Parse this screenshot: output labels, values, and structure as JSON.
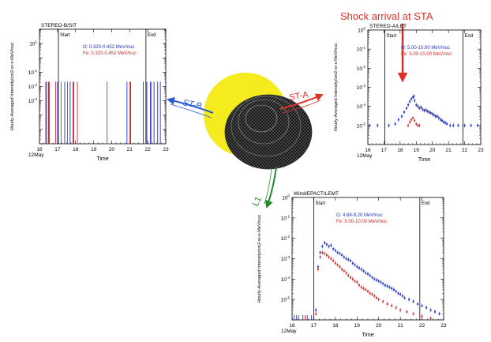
{
  "colors": {
    "oxygen": "#2233cc",
    "iron": "#d42a2a",
    "sun": "#f5eb1e",
    "st_b": "#2a5bd7",
    "st_a": "#e0302a",
    "l1": "#1f8a2a",
    "shock": "#e0302a"
  },
  "annotations": {
    "shock_label": "Shock arrival at STA",
    "st_b_label": "ST-B",
    "st_a_label": "ST-A",
    "l1_label": "L1"
  },
  "chart_data": [
    {
      "id": "stb",
      "type": "scatter",
      "title": "STEREO-B/SIT",
      "xlabel": "Time",
      "ylabel": "Hourly-Averaged Intensity/cm2-sr-s-MeV/nuc",
      "date_label": "12May",
      "xlim": [
        16,
        23
      ],
      "xticks": [
        "16",
        "17",
        "18",
        "19",
        "20",
        "21",
        "22",
        "23"
      ],
      "ylog": true,
      "ylim_exp": [
        -6,
        2
      ],
      "ytick_labels": [
        {
          "e": 1
        },
        {
          "e": -1
        },
        {
          "e": -2
        },
        {
          "e": -3
        }
      ],
      "legend": [
        {
          "text": "O: 0.320-0.452 MeV/nuc",
          "color": "#2233cc"
        },
        {
          "text": "Fe: 0.320-0.452 MeV/nuc",
          "color": "#d42a2a"
        }
      ],
      "markers": [
        {
          "label": "Start",
          "x": 17.05
        },
        {
          "label": "End",
          "x": 21.9
        }
      ],
      "series": [
        {
          "color": "#2233cc",
          "x": [
            16.35,
            16.5,
            17.0,
            17.4,
            17.7,
            17.9,
            20.85,
            21.05,
            21.75,
            21.95,
            22.15,
            22.35,
            22.55,
            22.7
          ],
          "y": [
            0.01,
            0.01,
            0.01,
            0.01,
            0.01,
            0.01,
            0.01,
            0.01,
            0.01,
            0.01,
            0.01,
            0.01,
            0.01,
            0.01
          ]
        },
        {
          "color": "#d42a2a",
          "x": [
            16.4,
            16.55,
            16.9,
            17.2,
            17.55,
            17.85,
            18.1,
            19.75,
            21.0,
            22.2
          ],
          "y": [
            0.01,
            0.01,
            0.01,
            0.01,
            0.01,
            0.01,
            0.01,
            0.01,
            0.01,
            0.01
          ]
        }
      ]
    },
    {
      "id": "sta",
      "type": "scatter",
      "title": "STEREO-A/LET",
      "xlabel": "Time",
      "ylabel": "Hourly-Averaged Intensity/cm2-sr-s-MeV/nuc",
      "date_label": "12May",
      "xlim": [
        16,
        23
      ],
      "xticks": [
        "16",
        "17",
        "18",
        "19",
        "20",
        "21",
        "22",
        "23"
      ],
      "ylog": true,
      "ylim_exp": [
        -6,
        0
      ],
      "ytick_labels": [
        {
          "e": 0
        },
        {
          "e": -1
        },
        {
          "e": -2
        },
        {
          "e": -3
        },
        {
          "e": -4
        },
        {
          "e": -5
        }
      ],
      "legend": [
        {
          "text": "O: 5.00-10.00 MeV/nuc",
          "color": "#2233cc"
        },
        {
          "text": "Fe: 5.00-10.00 MeV/nuc",
          "color": "#d42a2a"
        }
      ],
      "markers": [
        {
          "label": "Start",
          "x": 17.05
        },
        {
          "label": "End",
          "x": 21.9
        }
      ],
      "series": [
        {
          "color": "#2233cc",
          "x": [
            16.1,
            16.6,
            17.3,
            17.7,
            17.9,
            18.1,
            18.25,
            18.4,
            18.5,
            18.6,
            18.7,
            18.8,
            18.85,
            18.9,
            19.0,
            19.1,
            19.2,
            19.3,
            19.4,
            19.5,
            19.6,
            19.7,
            19.8,
            19.9,
            20.0,
            20.1,
            20.2,
            20.3,
            20.4,
            20.5,
            20.6,
            20.7,
            20.8,
            20.9,
            21.1,
            21.3,
            21.6,
            22.0,
            22.4,
            22.8
          ],
          "y": [
            1e-05,
            1e-05,
            1e-05,
            1.2e-05,
            2e-05,
            3e-05,
            5e-05,
            8e-05,
            0.00012,
            0.00018,
            0.00025,
            0.0003,
            0.00034,
            0.0002,
            0.00012,
            0.0001,
            8e-05,
            9e-05,
            7e-05,
            6e-05,
            6.5e-05,
            5.5e-05,
            5e-05,
            4.5e-05,
            4e-05,
            3.5e-05,
            3e-05,
            3e-05,
            2.5e-05,
            2e-05,
            1.8e-05,
            1.5e-05,
            1.4e-05,
            1.2e-05,
            1e-05,
            1e-05,
            1e-05,
            1e-05,
            1e-05,
            1e-05
          ]
        },
        {
          "color": "#d42a2a",
          "x": [
            18.5,
            18.6,
            18.7,
            18.8,
            18.9,
            19.0,
            19.1,
            19.2
          ],
          "y": [
            1e-05,
            1.5e-05,
            2e-05,
            2.5e-05,
            1.8e-05,
            1.2e-05,
            1e-05,
            1e-05
          ]
        }
      ]
    },
    {
      "id": "wind",
      "type": "scatter",
      "title": "Wind/EPACT/LEMT",
      "xlabel": "Time",
      "ylabel": "Hourly-Averaged Intensity/cm2-sr-s-MeV/nuc",
      "date_label": "12May",
      "xlim": [
        16,
        23
      ],
      "xticks": [
        "16",
        "17",
        "18",
        "19",
        "20",
        "21",
        "22",
        "23"
      ],
      "ylog": true,
      "ylim_exp": [
        -6,
        0
      ],
      "ytick_labels": [
        {
          "e": 0
        },
        {
          "e": -1
        },
        {
          "e": -2
        },
        {
          "e": -3
        },
        {
          "e": -4
        },
        {
          "e": -5
        }
      ],
      "legend": [
        {
          "text": "O: 4.68-9.20 MeV/nuc",
          "color": "#2233cc"
        },
        {
          "text": "Fe: 5.00-10.00 MeV/nuc",
          "color": "#d42a2a"
        }
      ],
      "markers": [
        {
          "label": "Start",
          "x": 17.0
        },
        {
          "label": "End",
          "x": 21.9
        }
      ],
      "series": [
        {
          "color": "#2233cc",
          "x": [
            16.1,
            16.3,
            16.5,
            16.7,
            16.9,
            17.1,
            17.2,
            17.3,
            17.4,
            17.5,
            17.6,
            17.7,
            17.8,
            17.9,
            18.0,
            18.1,
            18.2,
            18.3,
            18.4,
            18.5,
            18.6,
            18.7,
            18.8,
            18.9,
            19.0,
            19.1,
            19.2,
            19.3,
            19.4,
            19.5,
            19.6,
            19.7,
            19.8,
            19.9,
            20.0,
            20.1,
            20.2,
            20.3,
            20.4,
            20.5,
            20.6,
            20.7,
            20.8,
            20.9,
            21.0,
            21.1,
            21.2,
            21.4,
            21.6,
            21.8,
            22.0,
            22.2,
            22.4,
            22.6,
            22.8
          ],
          "y": [
            1e-06,
            1e-06,
            1e-06,
            1e-06,
            1e-06,
            3e-06,
            0.0004,
            0.002,
            0.004,
            0.006,
            0.005,
            0.004,
            0.0045,
            0.003,
            0.0025,
            0.002,
            0.0018,
            0.0015,
            0.0012,
            0.001,
            0.0009,
            0.0008,
            0.0006,
            0.0005,
            0.0004,
            0.00035,
            0.0003,
            0.00025,
            0.0002,
            0.00018,
            0.00015,
            0.00012,
            0.0001,
            9e-05,
            8e-05,
            7e-05,
            6e-05,
            5e-05,
            4.5e-05,
            4e-05,
            3.5e-05,
            3e-05,
            2.5e-05,
            2e-05,
            1.8e-05,
            1.5e-05,
            1.2e-05,
            1e-05,
            8e-06,
            6e-06,
            5e-06,
            4e-06,
            3e-06,
            2.5e-06,
            2e-06
          ]
        },
        {
          "color": "#d42a2a",
          "x": [
            16.2,
            16.6,
            17.1,
            17.2,
            17.3,
            17.4,
            17.5,
            17.6,
            17.7,
            17.8,
            17.9,
            18.0,
            18.1,
            18.2,
            18.3,
            18.4,
            18.5,
            18.6,
            18.7,
            18.8,
            18.9,
            19.0,
            19.1,
            19.2,
            19.3,
            19.4,
            19.5,
            19.6,
            19.7,
            19.8,
            19.9,
            20.0,
            20.2,
            20.4,
            20.6,
            20.8,
            21.0,
            21.3,
            21.6,
            22.0,
            22.4
          ],
          "y": [
            1e-06,
            1e-06,
            2e-06,
            0.0003,
            0.0012,
            0.002,
            0.0018,
            0.0015,
            0.0012,
            0.001,
            0.0008,
            0.0006,
            0.0005,
            0.0004,
            0.0003,
            0.00025,
            0.0002,
            0.00015,
            0.00012,
            0.0001,
            8e-05,
            7e-05,
            5e-05,
            4e-05,
            3.5e-05,
            3e-05,
            2.5e-05,
            2e-05,
            1.8e-05,
            1.5e-05,
            1.2e-05,
            1e-05,
            8e-06,
            6e-06,
            5e-06,
            4e-06,
            3e-06,
            2.5e-06,
            2e-06,
            1.5e-06,
            1.2e-06
          ]
        }
      ]
    }
  ]
}
